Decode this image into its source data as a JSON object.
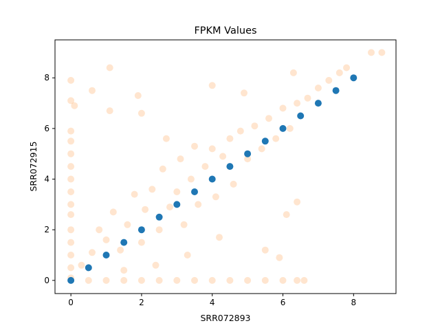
{
  "chart_data": {
    "type": "scatter",
    "title": "FPKM Values",
    "xlabel": "SRR072893",
    "ylabel": "SRR072915",
    "xlim": [
      -0.45,
      9.2
    ],
    "ylim": [
      -0.52,
      9.5
    ],
    "xticks": [
      0,
      2,
      4,
      6,
      8
    ],
    "yticks": [
      0,
      2,
      4,
      6,
      8
    ],
    "tick_labels": {
      "x": [
        "0",
        "2",
        "4",
        "6",
        "8"
      ],
      "y": [
        "0",
        "2",
        "4",
        "6",
        "8"
      ]
    },
    "grid": false,
    "legend": "none",
    "series": [
      {
        "role": "identity-line",
        "color": "#1f77b4",
        "alpha": 1.0,
        "points": [
          [
            0,
            0
          ],
          [
            0.5,
            0.5
          ],
          [
            1,
            1
          ],
          [
            1.5,
            1.5
          ],
          [
            2,
            2
          ],
          [
            2.5,
            2.5
          ],
          [
            3,
            3
          ],
          [
            3.5,
            3.5
          ],
          [
            4,
            4
          ],
          [
            4.5,
            4.5
          ],
          [
            5,
            5
          ],
          [
            5.5,
            5.5
          ],
          [
            6,
            6
          ],
          [
            6.5,
            6.5
          ],
          [
            7,
            7
          ],
          [
            7.5,
            7.5
          ],
          [
            8,
            8
          ]
        ]
      },
      {
        "role": "samples",
        "color": "#ff7f0e",
        "alpha": 0.2,
        "points": [
          [
            0,
            0.1
          ],
          [
            0,
            0.5
          ],
          [
            0,
            1.0
          ],
          [
            0,
            1.5
          ],
          [
            0,
            2.0
          ],
          [
            0,
            2.6
          ],
          [
            0,
            3.0
          ],
          [
            0,
            3.5
          ],
          [
            0,
            4.0
          ],
          [
            0,
            4.5
          ],
          [
            0,
            5.0
          ],
          [
            0,
            5.5
          ],
          [
            0,
            5.9
          ],
          [
            0,
            7.1
          ],
          [
            0,
            7.9
          ],
          [
            0.5,
            0
          ],
          [
            1.0,
            0
          ],
          [
            1.5,
            0
          ],
          [
            2.0,
            0
          ],
          [
            2.5,
            0
          ],
          [
            3.0,
            0
          ],
          [
            3.5,
            0
          ],
          [
            4.0,
            0
          ],
          [
            4.5,
            0
          ],
          [
            5.0,
            0
          ],
          [
            5.5,
            0
          ],
          [
            6.0,
            0
          ],
          [
            6.6,
            0
          ],
          [
            6.4,
            0
          ],
          [
            0.3,
            0.6
          ],
          [
            0.6,
            1.1
          ],
          [
            0.8,
            2.0
          ],
          [
            1.0,
            1.6
          ],
          [
            1.2,
            2.7
          ],
          [
            1.4,
            1.2
          ],
          [
            1.6,
            2.2
          ],
          [
            1.8,
            3.4
          ],
          [
            2.0,
            1.5
          ],
          [
            2.1,
            2.8
          ],
          [
            2.3,
            3.6
          ],
          [
            2.5,
            2.0
          ],
          [
            2.6,
            4.4
          ],
          [
            2.8,
            2.9
          ],
          [
            3.0,
            3.5
          ],
          [
            3.1,
            4.8
          ],
          [
            3.2,
            2.2
          ],
          [
            3.4,
            4.0
          ],
          [
            3.5,
            5.3
          ],
          [
            3.6,
            3.0
          ],
          [
            3.8,
            4.5
          ],
          [
            4.0,
            5.2
          ],
          [
            4.1,
            3.3
          ],
          [
            4.3,
            4.9
          ],
          [
            4.5,
            5.6
          ],
          [
            4.6,
            3.8
          ],
          [
            4.8,
            5.9
          ],
          [
            5.0,
            4.8
          ],
          [
            5.2,
            6.1
          ],
          [
            5.4,
            5.2
          ],
          [
            5.6,
            6.4
          ],
          [
            5.8,
            5.6
          ],
          [
            6.0,
            6.8
          ],
          [
            6.2,
            6.0
          ],
          [
            6.4,
            7.0
          ],
          [
            6.7,
            7.2
          ],
          [
            7.0,
            7.6
          ],
          [
            7.3,
            7.9
          ],
          [
            7.6,
            8.2
          ],
          [
            7.8,
            8.4
          ],
          [
            1.1,
            8.4
          ],
          [
            0.6,
            7.5
          ],
          [
            0.1,
            6.9
          ],
          [
            1.1,
            6.7
          ],
          [
            1.9,
            7.3
          ],
          [
            4.0,
            7.7
          ],
          [
            4.9,
            7.4
          ],
          [
            6.3,
            8.2
          ],
          [
            8.5,
            9.0
          ],
          [
            8.8,
            9.0
          ],
          [
            1.5,
            0.4
          ],
          [
            2.4,
            0.6
          ],
          [
            3.3,
            1.0
          ],
          [
            4.2,
            1.7
          ],
          [
            5.5,
            1.2
          ],
          [
            6.1,
            2.6
          ],
          [
            6.4,
            3.1
          ],
          [
            5.9,
            0.9
          ],
          [
            2.7,
            5.6
          ],
          [
            2.0,
            6.6
          ]
        ]
      }
    ]
  }
}
